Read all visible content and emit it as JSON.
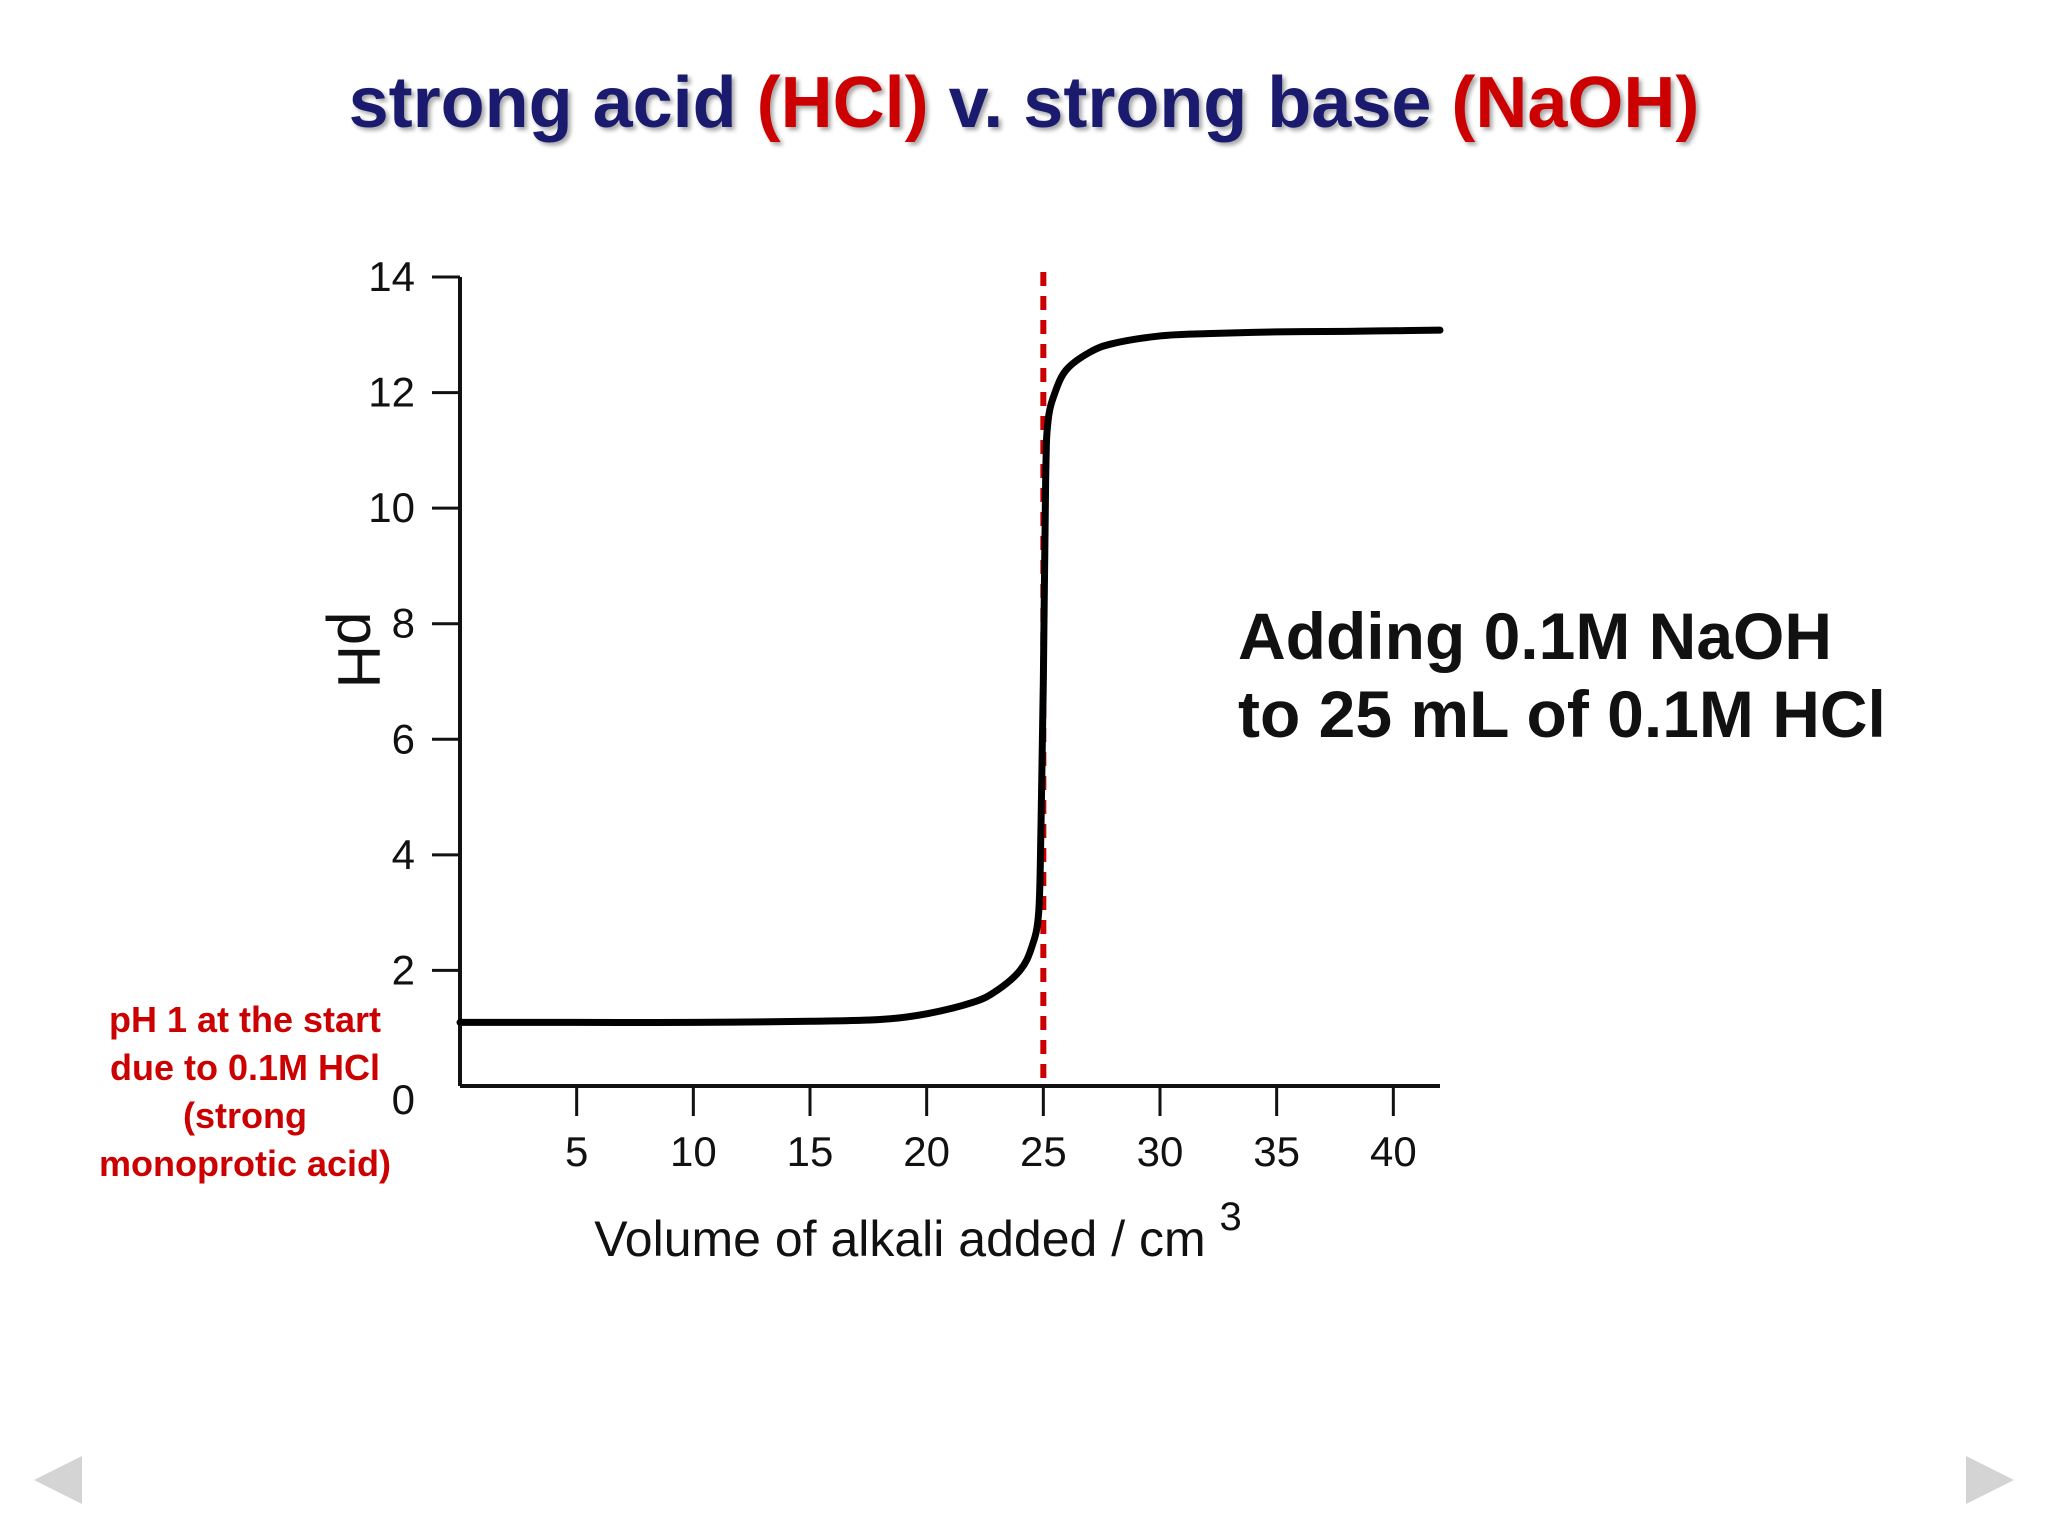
{
  "slide": {
    "title_parts": [
      {
        "text": "strong acid ",
        "color": "#1a1a6e"
      },
      {
        "text": "(HCl)",
        "color": "#cc0000"
      },
      {
        "text": " v. strong base ",
        "color": "#1a1a6e"
      },
      {
        "text": "(NaOH)",
        "color": "#cc0000"
      }
    ],
    "description_line1": "Adding 0.1M NaOH",
    "description_line2": "to 25 mL of 0.1M HCl",
    "annotation_lines": [
      "pH 1 at the start",
      "due to 0.1M HCl",
      "(strong",
      "monoprotic acid)"
    ],
    "annotation_color": "#cc0000",
    "prev_icon": "left-triangle-arrow-icon",
    "next_icon": "right-triangle-arrow-icon",
    "nav_color": "#d4d4d4"
  },
  "chart_data": {
    "type": "line",
    "title": "strong acid (HCl) v. strong base (NaOH)",
    "xlabel": "Volume of alkali added / cm",
    "xlabel_superscript": "3",
    "ylabel": "pH",
    "xlim": [
      0,
      42
    ],
    "ylim": [
      0,
      14
    ],
    "x_ticks": [
      5,
      10,
      15,
      20,
      25,
      30,
      35,
      40
    ],
    "y_ticks": [
      0,
      2,
      4,
      6,
      8,
      10,
      12,
      14
    ],
    "grid": false,
    "series": [
      {
        "color": "#000000",
        "x": [
          0,
          5,
          10,
          15,
          18,
          20,
          22,
          23,
          24,
          24.5,
          24.8,
          24.9,
          25,
          25.1,
          25.2,
          25.5,
          26,
          27,
          28,
          30,
          32,
          35,
          38,
          40,
          42
        ],
        "y": [
          1.1,
          1.1,
          1.1,
          1.12,
          1.15,
          1.25,
          1.45,
          1.65,
          2.0,
          2.4,
          3.0,
          4.5,
          7.0,
          10.5,
          11.5,
          12.0,
          12.4,
          12.7,
          12.85,
          12.98,
          13.02,
          13.05,
          13.06,
          13.07,
          13.08
        ]
      }
    ],
    "equivalence_line": {
      "x": 25,
      "color": "#cc0000",
      "style": "dashed"
    }
  }
}
